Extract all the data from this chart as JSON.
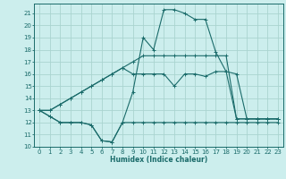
{
  "xlabel": "Humidex (Indice chaleur)",
  "bg_color": "#cceeed",
  "grid_color": "#aad4d0",
  "line_color": "#1a6b6a",
  "xlim": [
    -0.5,
    23.5
  ],
  "ylim": [
    10,
    21.8
  ],
  "xticks": [
    0,
    1,
    2,
    3,
    4,
    5,
    6,
    7,
    8,
    9,
    10,
    11,
    12,
    13,
    14,
    15,
    16,
    17,
    18,
    19,
    20,
    21,
    22,
    23
  ],
  "yticks": [
    10,
    11,
    12,
    13,
    14,
    15,
    16,
    17,
    18,
    19,
    20,
    21
  ],
  "series": [
    [
      13,
      12.5,
      12,
      12,
      12,
      11.8,
      10.5,
      10.4,
      12,
      12,
      12,
      12,
      12,
      12,
      12,
      12,
      12,
      12,
      12,
      12,
      12,
      12,
      12,
      12
    ],
    [
      13,
      12.5,
      12,
      12,
      12,
      11.8,
      10.5,
      10.4,
      12,
      14.5,
      19,
      18,
      21.3,
      21.3,
      21,
      20.5,
      20.5,
      17.8,
      16.2,
      12.3,
      12.3,
      12.3,
      12.3,
      12.3
    ],
    [
      13,
      13,
      13.5,
      14,
      14.5,
      15,
      15.5,
      16,
      16.5,
      17,
      17.5,
      17.5,
      17.5,
      17.5,
      17.5,
      17.5,
      17.5,
      17.5,
      17.5,
      12.3,
      12.3,
      12.3,
      12.3,
      12.3
    ],
    [
      13,
      13,
      13.5,
      14,
      14.5,
      15,
      15.5,
      16,
      16.5,
      16,
      16,
      16,
      16,
      15,
      16,
      16,
      15.8,
      16.2,
      16.2,
      16,
      12.3,
      12.3,
      12.3,
      12.3
    ]
  ]
}
